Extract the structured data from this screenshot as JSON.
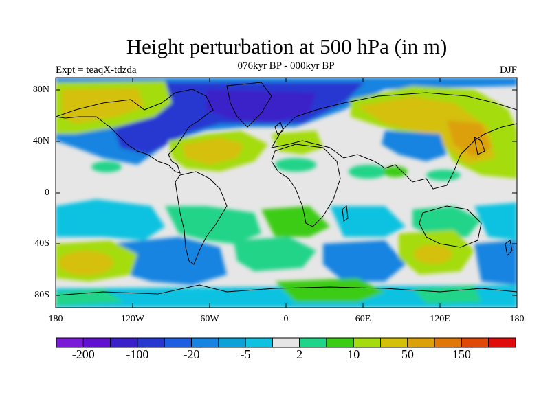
{
  "title": "Height perturbation at 500 hPa (in m)",
  "subtitle": "076kyr BP - 000kyr BP",
  "left_label": "Expt = teaqX-tdzda",
  "right_label": "DJF",
  "lat_labels": [
    "80N",
    "40N",
    "0",
    "40S",
    "80S"
  ],
  "lon_labels": [
    "180",
    "120W",
    "60W",
    "0",
    "60E",
    "120E",
    "180"
  ],
  "colorbar": {
    "colors": [
      "#7a1bd8",
      "#6010d0",
      "#3a20c8",
      "#2638d0",
      "#1e5ee0",
      "#1684e0",
      "#0ca2d8",
      "#10c2e0",
      "#e6e6e6",
      "#20d488",
      "#3ccc14",
      "#a4dc10",
      "#d4c008",
      "#dca008",
      "#e07808",
      "#e04808",
      "#e00c0c"
    ],
    "tick_labels": [
      "-200",
      "-100",
      "-20",
      "-5",
      "2",
      "10",
      "50",
      "150"
    ]
  },
  "palette": {
    "background_band": "#e6e6e6",
    "coastline": "#000000"
  }
}
